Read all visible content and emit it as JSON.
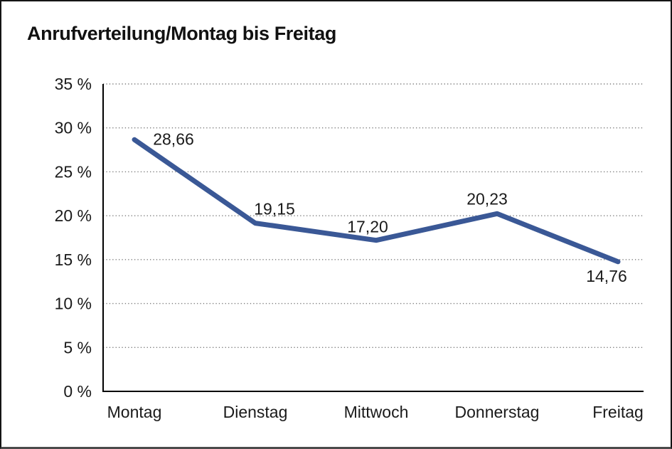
{
  "chart_data": {
    "type": "line",
    "title": "Anrufverteilung/Montag bis Freitag",
    "categories": [
      "Montag",
      "Dienstag",
      "Mittwoch",
      "Donnerstag",
      "Freitag"
    ],
    "values": [
      28.66,
      19.15,
      17.2,
      20.23,
      14.76
    ],
    "value_labels": [
      "28,66",
      "19,15",
      "17,20",
      "20,23",
      "14,76"
    ],
    "y_tick_values": [
      35,
      30,
      25,
      20,
      15,
      10,
      5,
      0
    ],
    "y_tick_labels": [
      "35 %",
      "30 %",
      "25 %",
      "20 %",
      "15 %",
      "10 %",
      "5 %",
      "0 %"
    ],
    "xlabel": "",
    "ylabel": "",
    "ylim": [
      0,
      35
    ],
    "grid": "horizontal-dotted",
    "legend": "none",
    "colors": {
      "line": "#3a5896",
      "axis": "#000000",
      "grid": "#7a7a7a",
      "text": "#1a1a1a",
      "title": "#111111"
    }
  }
}
